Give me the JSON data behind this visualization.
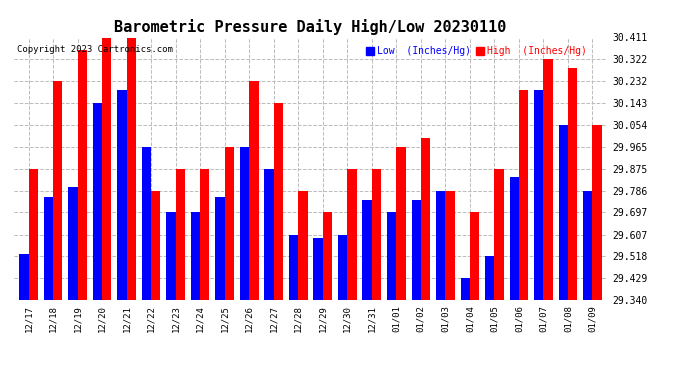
{
  "title": "Barometric Pressure Daily High/Low 20230110",
  "copyright": "Copyright 2023 Cartronics.com",
  "legend_low": "Low  (Inches/Hg)",
  "legend_high": "High  (Inches/Hg)",
  "categories": [
    "12/17",
    "12/18",
    "12/19",
    "12/20",
    "12/21",
    "12/22",
    "12/23",
    "12/24",
    "12/25",
    "12/26",
    "12/27",
    "12/28",
    "12/29",
    "12/30",
    "12/31",
    "01/01",
    "01/02",
    "01/03",
    "01/04",
    "01/05",
    "01/06",
    "01/07",
    "01/08",
    "01/09"
  ],
  "low_values": [
    29.528,
    29.76,
    29.8,
    30.143,
    30.196,
    29.965,
    29.697,
    29.697,
    29.76,
    29.965,
    29.875,
    29.607,
    29.591,
    29.607,
    29.75,
    29.697,
    29.75,
    29.786,
    29.429,
    29.518,
    29.84,
    30.196,
    30.054,
    29.786
  ],
  "high_values": [
    29.875,
    30.232,
    30.358,
    30.411,
    30.411,
    29.786,
    29.875,
    29.875,
    29.965,
    30.232,
    30.143,
    29.786,
    29.697,
    29.875,
    29.875,
    29.965,
    30.0,
    29.786,
    29.697,
    29.875,
    30.196,
    30.322,
    30.285,
    30.054
  ],
  "ylim_min": 29.34,
  "ylim_max": 30.411,
  "yticks": [
    29.34,
    29.429,
    29.518,
    29.607,
    29.697,
    29.786,
    29.875,
    29.965,
    30.054,
    30.143,
    30.232,
    30.322,
    30.411
  ],
  "low_color": "#0000ff",
  "high_color": "#ff0000",
  "bg_color": "#ffffff",
  "grid_color": "#bbbbbb",
  "title_fontsize": 11,
  "bar_width": 0.38,
  "fig_width": 6.9,
  "fig_height": 3.75,
  "dpi": 100
}
